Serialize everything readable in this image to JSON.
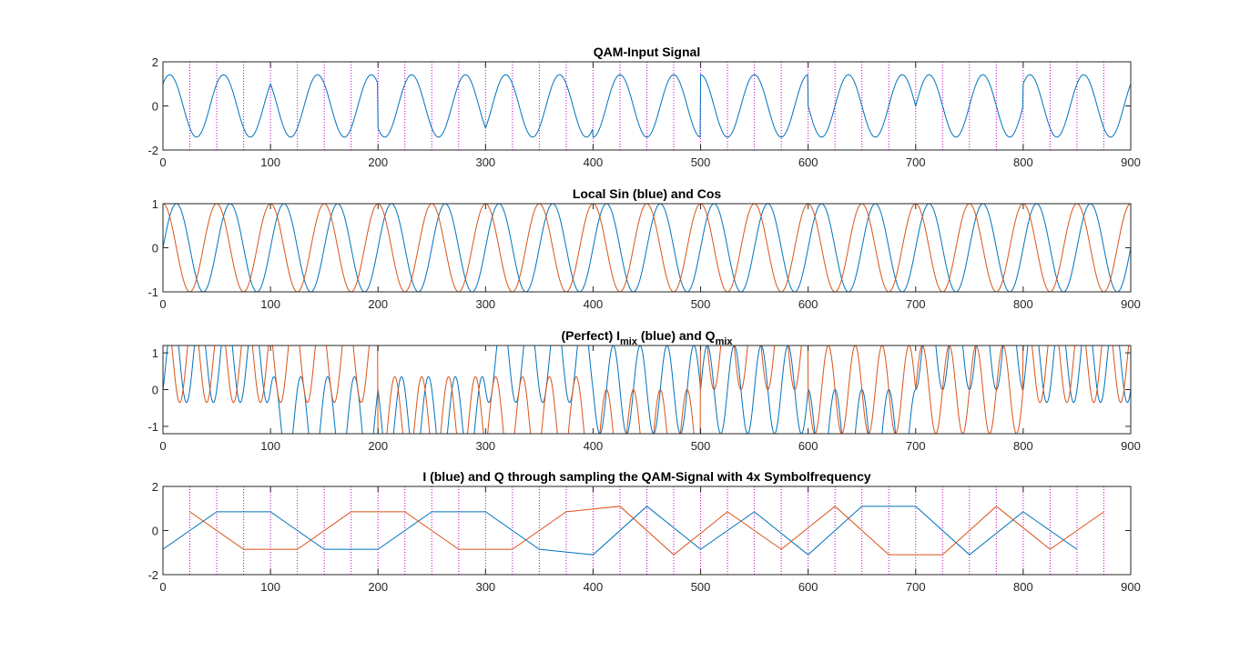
{
  "chart_data": [
    {
      "type": "line",
      "title": "QAM-Input Signal",
      "xlim": [
        0,
        900
      ],
      "ylim": [
        -2,
        2
      ],
      "xticks": [
        "0",
        "100",
        "200",
        "300",
        "400",
        "500",
        "600",
        "700",
        "800",
        "900"
      ],
      "yticks": [
        "-2",
        "0",
        "2"
      ],
      "xtick_values": [
        0,
        100,
        200,
        300,
        400,
        500,
        600,
        700,
        800,
        900
      ],
      "ytick_values": [
        -2,
        0,
        2
      ],
      "grid": false,
      "colors": [
        "#0072BD",
        "#D95319"
      ],
      "series": [
        {
          "kind": "qam",
          "carrier_period": 50,
          "symbol_length": 100,
          "symbol_phases_deg": [
            -45,
            45,
            135,
            -135,
            180,
            0,
            90,
            -90,
            -45
          ]
        }
      ],
      "sample_markers": {
        "x_start": 25,
        "x_step": 25,
        "x_end": 875,
        "color": "#BF00BF"
      }
    },
    {
      "type": "line",
      "title": "Local Sin (blue) and Cos",
      "xlim": [
        0,
        900
      ],
      "ylim": [
        -1,
        1
      ],
      "xticks": [
        "0",
        "100",
        "200",
        "300",
        "400",
        "500",
        "600",
        "700",
        "800",
        "900"
      ],
      "yticks": [
        "-1",
        "0",
        "1"
      ],
      "xtick_values": [
        0,
        100,
        200,
        300,
        400,
        500,
        600,
        700,
        800,
        900
      ],
      "ytick_values": [
        -1,
        0,
        1
      ],
      "grid": false,
      "colors": [
        "#0072BD",
        "#D95319"
      ],
      "series": [
        {
          "kind": "sin",
          "period": 50,
          "amplitude": 1
        },
        {
          "kind": "cos",
          "period": 50,
          "amplitude": 1
        }
      ]
    },
    {
      "type": "line",
      "title": "(Perfect) I<sub>mix</sub> (blue) and Q<sub>mix</sub>",
      "title_parts": {
        "prefix": "(Perfect) I",
        "sub1": "mix",
        "middle": " (blue) and Q",
        "sub2": "mix"
      },
      "xlim": [
        0,
        900
      ],
      "ylim": [
        -1.2,
        1.2
      ],
      "xticks": [
        "0",
        "100",
        "200",
        "300",
        "400",
        "500",
        "600",
        "700",
        "800",
        "900"
      ],
      "yticks": [
        "-1",
        "0",
        "1"
      ],
      "xtick_values": [
        0,
        100,
        200,
        300,
        400,
        500,
        600,
        700,
        800,
        900
      ],
      "ytick_values": [
        -1,
        0,
        1
      ],
      "grid": false,
      "colors": [
        "#0072BD",
        "#D95319"
      ],
      "series": [
        {
          "kind": "imix",
          "carrier_period": 50,
          "symbol_length": 100,
          "symbol_phases_deg": [
            -45,
            45,
            135,
            -135,
            180,
            0,
            90,
            -90,
            -45
          ]
        },
        {
          "kind": "qmix",
          "carrier_period": 50,
          "symbol_length": 100,
          "symbol_phases_deg": [
            -45,
            45,
            135,
            -135,
            180,
            0,
            90,
            -90,
            -45
          ]
        }
      ]
    },
    {
      "type": "line",
      "title": "I (blue) and Q through sampling the QAM-Signal with 4x Symbolfrequency",
      "xlim": [
        0,
        900
      ],
      "ylim": [
        -2,
        2
      ],
      "xticks": [
        "0",
        "100",
        "200",
        "300",
        "400",
        "500",
        "600",
        "700",
        "800",
        "900"
      ],
      "yticks": [
        "-2",
        "0",
        "2"
      ],
      "xtick_values": [
        0,
        100,
        200,
        300,
        400,
        500,
        600,
        700,
        800,
        900
      ],
      "ytick_values": [
        -2,
        0,
        2
      ],
      "grid": false,
      "colors": [
        "#0072BD",
        "#D95319"
      ],
      "series": [
        {
          "name": "I",
          "x": [
            0,
            50,
            100,
            150,
            200,
            250,
            300,
            350,
            400,
            450,
            500,
            550,
            600,
            650,
            700,
            750,
            800,
            850
          ],
          "y": [
            -0.85,
            0.85,
            0.85,
            -0.85,
            -0.85,
            0.85,
            0.85,
            -0.85,
            -1.1,
            1.1,
            -0.85,
            0.85,
            -1.1,
            1.1,
            1.1,
            -1.1,
            0.85,
            -0.85
          ]
        },
        {
          "name": "Q",
          "x": [
            25,
            75,
            125,
            175,
            225,
            275,
            325,
            375,
            425,
            475,
            525,
            575,
            625,
            675,
            725,
            775,
            825,
            875
          ],
          "y": [
            0.85,
            -0.85,
            -0.85,
            0.85,
            0.85,
            -0.85,
            -0.85,
            0.85,
            1.1,
            -1.1,
            0.85,
            -0.85,
            1.1,
            -1.1,
            -1.1,
            1.1,
            -0.85,
            0.85
          ]
        }
      ],
      "sample_markers": {
        "x_start": 25,
        "x_step": 25,
        "x_end": 875,
        "color": "#BF00BF"
      }
    }
  ]
}
